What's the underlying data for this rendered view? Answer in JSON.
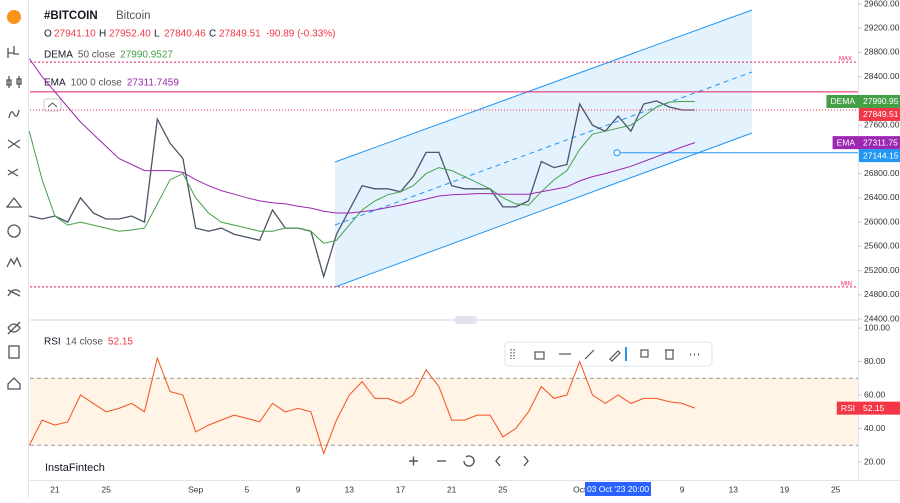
{
  "header": {
    "symbol": "#BITCOIN",
    "name": "Bitcoin",
    "ohlc": [
      {
        "label": "O",
        "value": "27941.10"
      },
      {
        "label": "H",
        "value": "27952.40"
      },
      {
        "label": "L",
        "value": "27840.46"
      },
      {
        "label": "C",
        "value": "27849.51"
      }
    ],
    "change": "-90.89 (-0.33%)"
  },
  "indicators": [
    {
      "name": "DEMA",
      "params": "50 close",
      "value": "27990.9527"
    },
    {
      "name": "EMA",
      "params": "100 0 close",
      "value": "27311.7459"
    },
    {
      "name": "RSI",
      "params": "14 close",
      "value": "52.15"
    }
  ],
  "watermark": "InstaFintech",
  "crosshair_label": "03 Oct '23 20:00",
  "chart_data": [
    {
      "type": "line",
      "categories": [
        null,
        null,
        "21",
        null,
        null,
        null,
        "25",
        null,
        null,
        null,
        null,
        null,
        null,
        "Sep",
        null,
        null,
        null,
        "5",
        null,
        null,
        null,
        "9",
        null,
        null,
        null,
        "13",
        null,
        null,
        null,
        "17",
        null,
        null,
        null,
        "21",
        null,
        null,
        null,
        "25",
        null,
        null,
        null,
        null,
        null,
        "Oct",
        null,
        null,
        null,
        null,
        null,
        null,
        null,
        "9",
        null,
        null,
        null,
        "13",
        null,
        null,
        null,
        "19",
        null,
        null,
        null,
        "25",
        null
      ],
      "ylim": [
        24400,
        29600
      ],
      "yticks": [
        {
          "value": 29600,
          "label": "29600.00"
        },
        {
          "value": 29200,
          "label": "29200.00"
        },
        {
          "value": 28800,
          "label": "28800.00"
        },
        {
          "value": 28400,
          "label": "28400.00"
        },
        {
          "value": 28000,
          "label": "28000.00"
        },
        {
          "value": 27600,
          "label": "27600.00"
        },
        {
          "value": 27200,
          "label": "27200.00"
        },
        {
          "value": 26800,
          "label": "26800.00"
        },
        {
          "value": 26400,
          "label": "26400.00"
        },
        {
          "value": 26000,
          "label": "26000.00"
        },
        {
          "value": 25600,
          "label": "25600.00"
        },
        {
          "value": 25200,
          "label": "25200.00"
        },
        {
          "value": 24800,
          "label": "24800.00"
        },
        {
          "value": 24400,
          "label": "24400.00"
        }
      ],
      "grid": false,
      "series": [
        {
          "name": "Bitcoin",
          "color": "#4a5568",
          "tag_color": "#f23645",
          "values": [
            26100,
            26050,
            26100,
            26000,
            26400,
            26150,
            26050,
            26050,
            26100,
            26000,
            27700,
            27300,
            27050,
            25900,
            25850,
            25900,
            25800,
            25750,
            25700,
            26200,
            25900,
            25900,
            25850,
            25100,
            25800,
            26200,
            26600,
            26550,
            26550,
            26500,
            26750,
            27150,
            27150,
            26600,
            26550,
            26550,
            26550,
            26250,
            26250,
            26350,
            27000,
            26900,
            26950,
            27950,
            27600,
            27500,
            27750,
            27500,
            27950,
            28000,
            27900,
            27850,
            27849.51,
            null,
            null,
            null,
            null,
            null,
            null,
            null,
            null,
            null,
            null,
            null,
            null
          ]
        },
        {
          "name": "DEMA",
          "color": "#43a047",
          "tag_color": "#43a047",
          "values": [
            27500,
            26700,
            26100,
            25950,
            26000,
            25950,
            25900,
            25850,
            25870,
            25900,
            26300,
            26700,
            26800,
            26400,
            26150,
            26000,
            25950,
            25900,
            25850,
            25850,
            25900,
            25900,
            25850,
            25650,
            25700,
            25950,
            26200,
            26350,
            26450,
            26500,
            26600,
            26800,
            26900,
            26850,
            26750,
            26650,
            26550,
            26400,
            26300,
            26280,
            26500,
            26700,
            26850,
            27200,
            27450,
            27500,
            27550,
            27600,
            27750,
            27900,
            27980,
            27990,
            27990.95,
            null,
            null,
            null,
            null,
            null,
            null,
            null,
            null,
            null,
            null,
            null,
            null
          ]
        },
        {
          "name": "EMA",
          "color": "#9c27b0",
          "tag_color": "#9c27b0",
          "values": [
            28700,
            28400,
            28150,
            27900,
            27650,
            27450,
            27250,
            27050,
            26950,
            26850,
            26850,
            26850,
            26820,
            26700,
            26600,
            26520,
            26460,
            26400,
            26350,
            26320,
            26300,
            26260,
            26230,
            26180,
            26150,
            26150,
            26170,
            26200,
            26240,
            26280,
            26330,
            26380,
            26430,
            26450,
            26460,
            26470,
            26470,
            26460,
            26460,
            26460,
            26500,
            26540,
            26580,
            26680,
            26750,
            26800,
            26860,
            26920,
            27000,
            27080,
            27160,
            27240,
            27311.75,
            null,
            null,
            null,
            null,
            null,
            null,
            null,
            null,
            null,
            null,
            null,
            null
          ]
        }
      ],
      "levels": [
        {
          "label": "MAX",
          "value": 28640,
          "color": "#e91e63"
        },
        {
          "label": "MIN",
          "value": 24930,
          "color": "#e91e63"
        },
        {
          "value": 28150,
          "color": "#e91e63"
        },
        {
          "value": 27144.15,
          "color": "#2196f3"
        }
      ]
    },
    {
      "type": "line",
      "ylim": [
        20,
        100
      ],
      "yticks": [
        {
          "value": 100,
          "label": "100.00"
        },
        {
          "value": 80,
          "label": "80.00"
        },
        {
          "value": 60,
          "label": "60.00"
        },
        {
          "value": 40,
          "label": "40.00"
        },
        {
          "value": 20,
          "label": "20.00"
        }
      ],
      "bands": [
        30,
        70
      ],
      "series": [
        {
          "name": "RSI",
          "color": "#f4511e",
          "tag_color": "#f23645",
          "values": [
            30,
            45,
            42,
            44,
            60,
            55,
            50,
            52,
            55,
            50,
            82,
            62,
            60,
            38,
            42,
            45,
            48,
            46,
            44,
            55,
            50,
            52,
            50,
            25,
            45,
            60,
            68,
            58,
            58,
            55,
            60,
            75,
            65,
            45,
            45,
            48,
            48,
            35,
            40,
            50,
            65,
            58,
            60,
            80,
            60,
            55,
            60,
            55,
            58,
            58,
            56,
            55,
            52.15,
            null,
            null,
            null,
            null,
            null,
            null,
            null,
            null,
            null,
            null,
            null,
            null
          ]
        }
      ]
    }
  ]
}
